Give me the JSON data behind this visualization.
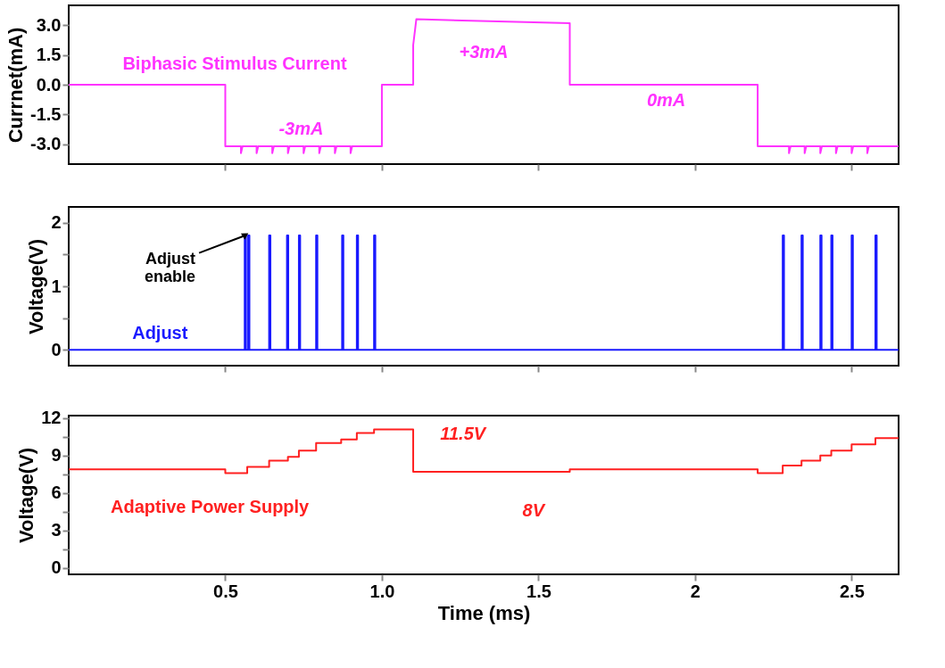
{
  "chart_data": [
    {
      "type": "line",
      "ylabel": "Currnet(mA)",
      "xlim": [
        0,
        2.65
      ],
      "ylim": [
        -4,
        4
      ],
      "xticks": [
        {
          "value": 0.5,
          "label": null
        },
        {
          "value": 1,
          "label": null
        },
        {
          "value": 1.5,
          "label": null
        },
        {
          "value": 2,
          "label": null
        },
        {
          "value": 2.5,
          "label": null
        }
      ],
      "yticks": [
        {
          "value": 3,
          "label": "3.0"
        },
        1.5,
        {
          "value": 0,
          "label": "0.0"
        },
        -1.5,
        {
          "value": -3,
          "label": "-3.0"
        }
      ],
      "tick_labels": "y",
      "grid": false,
      "series": [
        {
          "name": "Biphasic Stimulus Current",
          "color": "#ff33ff",
          "x": [
            0,
            0.5,
            0.5,
            0.55,
            0.55,
            0.555,
            0.6,
            0.6,
            0.605,
            0.65,
            0.65,
            0.655,
            0.7,
            0.7,
            0.705,
            0.75,
            0.75,
            0.755,
            0.8,
            0.8,
            0.805,
            0.85,
            0.85,
            0.855,
            0.9,
            0.9,
            0.905,
            1.0,
            1.0,
            1.1,
            1.1,
            1.11,
            1.6,
            1.6,
            2.2,
            2.2,
            2.3,
            2.3,
            2.305,
            2.35,
            2.35,
            2.355,
            2.4,
            2.4,
            2.405,
            2.45,
            2.45,
            2.455,
            2.5,
            2.5,
            2.505,
            2.55,
            2.55,
            2.555,
            2.65
          ],
          "values": [
            0,
            0,
            -3.1,
            -3.1,
            -3.45,
            -3.1,
            -3.1,
            -3.45,
            -3.1,
            -3.1,
            -3.45,
            -3.1,
            -3.1,
            -3.45,
            -3.1,
            -3.1,
            -3.45,
            -3.1,
            -3.1,
            -3.45,
            -3.1,
            -3.1,
            -3.45,
            -3.1,
            -3.1,
            -3.45,
            -3.1,
            -3.1,
            0,
            0,
            2.0,
            3.3,
            3.1,
            0,
            0,
            -3.1,
            -3.1,
            -3.45,
            -3.1,
            -3.1,
            -3.45,
            -3.1,
            -3.1,
            -3.45,
            -3.1,
            -3.1,
            -3.45,
            -3.1,
            -3.1,
            -3.45,
            -3.1,
            -3.1,
            -3.45,
            -3.1,
            -3.1
          ]
        }
      ],
      "annotations": [
        "-3mA",
        "+3mA",
        "0mA"
      ]
    },
    {
      "type": "line",
      "ylabel": "Voltage(V)",
      "xlim": [
        0,
        2.65
      ],
      "ylim": [
        -0.25,
        2.25
      ],
      "xticks": [
        {
          "value": 0.5,
          "label": null
        },
        {
          "value": 1,
          "label": null
        },
        {
          "value": 1.5,
          "label": null
        },
        {
          "value": 2,
          "label": null
        },
        {
          "value": 2.5,
          "label": null
        }
      ],
      "yticks": [
        0,
        {
          "value": 0.5,
          "label": null
        },
        1,
        {
          "value": 1.5,
          "label": null
        },
        2
      ],
      "tick_labels": "y",
      "grid": false,
      "series": [
        {
          "name": "Adjust",
          "color": "#1a1aff",
          "x": [
            0,
            0.562,
            0.562,
            0.566,
            0.566,
            0.573,
            0.573,
            0.577,
            0.577,
            0.64,
            0.64,
            0.644,
            0.644,
            0.697,
            0.697,
            0.701,
            0.701,
            0.735,
            0.735,
            0.739,
            0.739,
            0.79,
            0.79,
            0.794,
            0.794,
            0.873,
            0.873,
            0.877,
            0.877,
            0.92,
            0.92,
            0.924,
            0.924,
            0.975,
            0.975,
            0.979,
            0.979,
            2.28,
            2.28,
            2.284,
            2.284,
            2.34,
            2.34,
            2.344,
            2.344,
            2.4,
            2.4,
            2.404,
            2.404,
            2.435,
            2.435,
            2.439,
            2.439,
            2.5,
            2.5,
            2.504,
            2.504,
            2.576,
            2.576,
            2.58,
            2.58,
            2.65
          ],
          "values": [
            0,
            0,
            1.8,
            1.8,
            0,
            0,
            1.8,
            1.8,
            0,
            0,
            1.8,
            1.8,
            0,
            0,
            1.8,
            1.8,
            0,
            0,
            1.8,
            1.8,
            0,
            0,
            1.8,
            1.8,
            0,
            0,
            1.8,
            1.8,
            0,
            0,
            1.8,
            1.8,
            0,
            0,
            1.8,
            1.8,
            0,
            0,
            1.8,
            1.8,
            0,
            0,
            1.8,
            1.8,
            0,
            0,
            1.8,
            1.8,
            0,
            0,
            1.8,
            1.8,
            0,
            0,
            1.8,
            1.8,
            0,
            0,
            1.8,
            1.8,
            0,
            0
          ]
        }
      ],
      "annotations": [
        {
          "text": "Adjust\nenable",
          "x": 0.562,
          "y": 1.8
        }
      ]
    },
    {
      "type": "line",
      "xlabel": "Time (ms)",
      "ylabel": "Voltage(V)",
      "xlim": [
        0,
        2.65
      ],
      "ylim": [
        -0.5,
        12.2
      ],
      "xticks": [
        0.5,
        {
          "value": 1.0,
          "label": "1.0"
        },
        1.5,
        2,
        2.5
      ],
      "yticks": [
        0,
        {
          "value": 1.5,
          "label": null
        },
        3,
        {
          "value": 4.5,
          "label": null
        },
        6,
        {
          "value": 7.5,
          "label": null
        },
        9,
        {
          "value": 10.5,
          "label": null
        },
        12
      ],
      "grid": false,
      "series": [
        {
          "name": "Adaptive Power Supply",
          "color": "#ff2020",
          "x": [
            0,
            0.5,
            0.5,
            0.57,
            0.57,
            0.64,
            0.64,
            0.7,
            0.7,
            0.735,
            0.735,
            0.79,
            0.79,
            0.87,
            0.87,
            0.92,
            0.92,
            0.975,
            0.975,
            1.1,
            1.1,
            1.6,
            1.6,
            2.2,
            2.2,
            2.28,
            2.28,
            2.34,
            2.34,
            2.4,
            2.4,
            2.435,
            2.435,
            2.5,
            2.5,
            2.576,
            2.576,
            2.65
          ],
          "values": [
            7.9,
            7.9,
            7.6,
            7.6,
            8.1,
            8.1,
            8.6,
            8.6,
            8.9,
            8.9,
            9.4,
            9.4,
            10.0,
            10.0,
            10.3,
            10.3,
            10.8,
            10.8,
            11.1,
            11.1,
            7.7,
            7.7,
            7.9,
            7.9,
            7.6,
            7.6,
            8.2,
            8.2,
            8.6,
            8.6,
            9.0,
            9.0,
            9.4,
            9.4,
            9.9,
            9.9,
            10.4,
            10.4
          ]
        }
      ],
      "annotations": [
        "11.5V",
        "8V"
      ]
    }
  ]
}
